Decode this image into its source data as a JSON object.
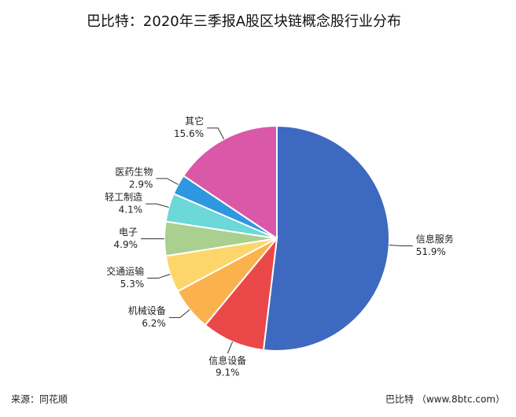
{
  "chart_data": {
    "type": "pie",
    "title": "巴比特：2020年三季报A股区块链概念股行业分布",
    "categories": [
      "信息服务",
      "信息设备",
      "机械设备",
      "交通运输",
      "电子",
      "轻工制造",
      "医药生物",
      "其它"
    ],
    "values": [
      51.9,
      9.1,
      6.2,
      5.3,
      4.9,
      4.1,
      2.9,
      15.6
    ],
    "value_labels": [
      "51.9%",
      "9.1%",
      "6.2%",
      "5.3%",
      "4.9%",
      "4.1%",
      "2.9%",
      "15.6%"
    ],
    "colors": [
      "#3d69c0",
      "#ea4848",
      "#fbb24c",
      "#fdd66b",
      "#a9d08e",
      "#6cd8d8",
      "#2f97df",
      "#d958a8"
    ],
    "source": "来源：同花顺",
    "credit": "巴比特 （www.8btc.com）"
  }
}
